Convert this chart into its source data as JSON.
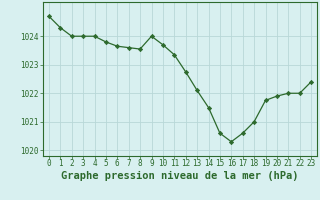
{
  "hours": [
    0,
    1,
    2,
    3,
    4,
    5,
    6,
    7,
    8,
    9,
    10,
    11,
    12,
    13,
    14,
    15,
    16,
    17,
    18,
    19,
    20,
    21,
    22,
    23
  ],
  "pressure": [
    1024.7,
    1024.3,
    1024.0,
    1024.0,
    1024.0,
    1023.8,
    1023.65,
    1023.6,
    1023.55,
    1024.0,
    1023.7,
    1023.35,
    1022.75,
    1022.1,
    1021.5,
    1020.6,
    1020.3,
    1020.6,
    1021.0,
    1021.75,
    1021.9,
    1022.0,
    1022.0,
    1022.4
  ],
  "line_color": "#2d6a2d",
  "marker": "D",
  "marker_size": 2.2,
  "bg_color": "#d8f0f0",
  "grid_color": "#b8d8d8",
  "title": "Graphe pression niveau de la mer (hPa)",
  "title_fontsize": 7.5,
  "ylim": [
    1019.8,
    1025.2
  ],
  "yticks": [
    1020,
    1021,
    1022,
    1023,
    1024
  ],
  "xtick_labels": [
    "0",
    "1",
    "2",
    "3",
    "4",
    "5",
    "6",
    "7",
    "8",
    "9",
    "10",
    "11",
    "12",
    "13",
    "14",
    "15",
    "16",
    "17",
    "18",
    "19",
    "20",
    "21",
    "22",
    "23"
  ],
  "tick_color": "#2d6a2d",
  "tick_fontsize": 5.5,
  "border_color": "#2d6a2d"
}
